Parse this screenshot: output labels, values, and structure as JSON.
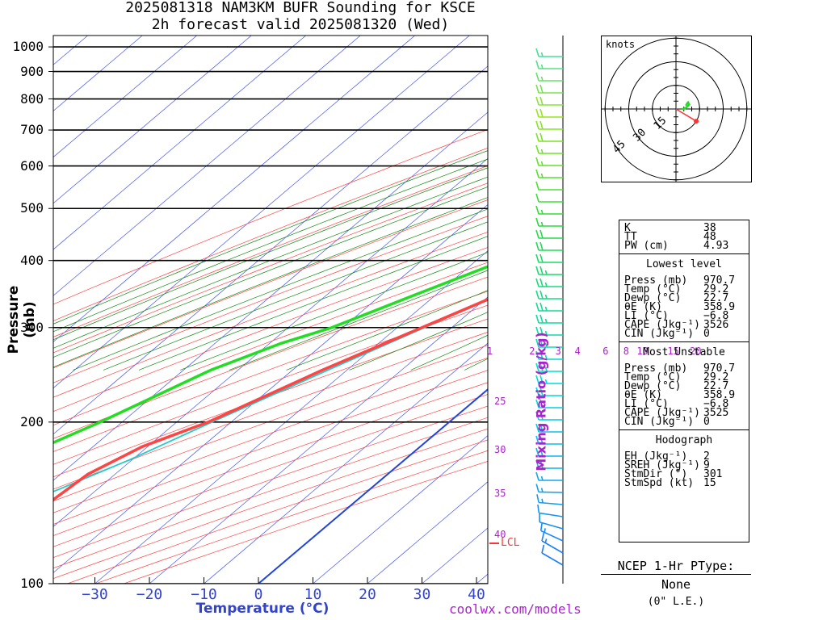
{
  "title": {
    "line1": "2025081318 NAM3KM BUFR Sounding for KSCE",
    "line2": "2h forecast valid 2025081320 (Wed)"
  },
  "axes": {
    "ylabel": "Pressure (mb)",
    "xlabel": "Temperature (°C)",
    "pressure_ticks": [
      "100",
      "200",
      "300",
      "400",
      "500",
      "600",
      "700",
      "800",
      "900",
      "1000"
    ],
    "temp_ticks": [
      "−30",
      "−20",
      "−10",
      "0",
      "10",
      "20",
      "30",
      "40"
    ],
    "mixing_ratio_label": "Mixing Ratio (g/kg)",
    "mixing_ratio_ticks_top": [
      "1",
      "2",
      "3",
      "4",
      "6",
      "8",
      "10",
      "15",
      "20"
    ],
    "mixing_ratio_ticks_side": [
      "25",
      "30",
      "35",
      "40"
    ],
    "lcl_label": "LCL"
  },
  "credit": "coolwx.com/models",
  "colors": {
    "temperature": "#ff4444",
    "dewpoint": "#22dd22",
    "parcel": "#22cccc",
    "freezing": "#2244dd",
    "isotherm": "#4455ee",
    "dry_adiabat": "#ff4444",
    "moist_adiabat": "#118811",
    "mixing_ratio": "#aa22cc"
  },
  "chart_data": {
    "type": "line",
    "x_unit": "°C",
    "y_unit": "mb",
    "ylim": [
      100,
      1050
    ],
    "y_scale": "log",
    "xlim_at_1050mb": [
      -40,
      42
    ],
    "series": [
      {
        "name": "Temperature",
        "points": [
          [
            29.2,
            970.7
          ],
          [
            26.8,
            950
          ],
          [
            24.5,
            925
          ],
          [
            22.5,
            900
          ],
          [
            19.6,
            850
          ],
          [
            17.0,
            800
          ],
          [
            14.0,
            750
          ],
          [
            11.0,
            700
          ],
          [
            7.8,
            650
          ],
          [
            5.0,
            600
          ],
          [
            1.6,
            550
          ],
          [
            -2.2,
            500
          ],
          [
            -6.6,
            450
          ],
          [
            -11.5,
            400
          ],
          [
            -17.8,
            350
          ],
          [
            -25.5,
            300
          ],
          [
            -34.5,
            250
          ],
          [
            -44.2,
            200
          ],
          [
            -51.0,
            180
          ],
          [
            -55.0,
            160
          ],
          [
            -56.0,
            140
          ],
          [
            -56.5,
            120
          ],
          [
            -59.0,
            100
          ]
        ]
      },
      {
        "name": "Dewpoint",
        "points": [
          [
            22.7,
            970.7
          ],
          [
            22.4,
            950
          ],
          [
            22.3,
            925
          ],
          [
            22.0,
            900
          ],
          [
            19.0,
            850
          ],
          [
            12.0,
            800
          ],
          [
            8.0,
            750
          ],
          [
            3.0,
            700
          ],
          [
            -1.0,
            650
          ],
          [
            -5.0,
            600
          ],
          [
            -9.5,
            550
          ],
          [
            -14.0,
            500
          ],
          [
            -17.0,
            450
          ],
          [
            -25.0,
            400
          ],
          [
            -33.0,
            350
          ],
          [
            -42.0,
            300
          ],
          [
            -48.0,
            280
          ],
          [
            -55.0,
            250
          ],
          [
            -64.0,
            200
          ],
          [
            -69.0,
            180
          ],
          [
            -76.0,
            160
          ],
          [
            -78.0,
            150
          ],
          [
            -79.0,
            140
          ]
        ]
      },
      {
        "name": "Parcel",
        "points": [
          [
            29.2,
            970.7
          ],
          [
            25.8,
            940
          ],
          [
            24.5,
            925
          ],
          [
            23.5,
            900
          ],
          [
            21.5,
            850
          ],
          [
            19.3,
            800
          ],
          [
            16.8,
            750
          ],
          [
            14.0,
            700
          ],
          [
            11.0,
            650
          ],
          [
            7.6,
            600
          ],
          [
            3.8,
            550
          ],
          [
            -0.5,
            500
          ],
          [
            -5.5,
            450
          ],
          [
            -11.0,
            400
          ],
          [
            -17.5,
            350
          ],
          [
            -25.0,
            300
          ],
          [
            -33.5,
            250
          ],
          [
            -43.5,
            200
          ],
          [
            -50.5,
            170
          ],
          [
            -57.0,
            150
          ],
          [
            -65.0,
            130
          ],
          [
            -72.0,
            115
          ],
          [
            -78.0,
            105
          ]
        ]
      }
    ],
    "winds_kt": [
      {
        "p": 1000,
        "dir": 300,
        "spd": 10
      },
      {
        "p": 950,
        "dir": 300,
        "spd": 12
      },
      {
        "p": 900,
        "dir": 300,
        "spd": 15
      },
      {
        "p": 850,
        "dir": 290,
        "spd": 12
      },
      {
        "p": 800,
        "dir": 280,
        "spd": 10
      },
      {
        "p": 700,
        "dir": 270,
        "spd": 15
      },
      {
        "p": 600,
        "dir": 270,
        "spd": 20
      },
      {
        "p": 500,
        "dir": 270,
        "spd": 20
      },
      {
        "p": 400,
        "dir": 270,
        "spd": 25
      },
      {
        "p": 300,
        "dir": 270,
        "spd": 25
      },
      {
        "p": 250,
        "dir": 270,
        "spd": 20
      },
      {
        "p": 200,
        "dir": 270,
        "spd": 10
      },
      {
        "p": 150,
        "dir": 270,
        "spd": 20
      },
      {
        "p": 100,
        "dir": 270,
        "spd": 15
      }
    ],
    "hodograph": {
      "units": "knots",
      "rings_kt": [
        15,
        30,
        45
      ],
      "uv_kt": [
        [
          9,
          3
        ],
        [
          10,
          5
        ],
        [
          11,
          6
        ],
        [
          12,
          4
        ],
        [
          9,
          1
        ],
        [
          7,
          0
        ],
        [
          5,
          0
        ]
      ],
      "storm_motion": {
        "dir": 301,
        "spd": 15
      }
    }
  },
  "indices": {
    "general": [
      {
        "k": "K",
        "v": "38"
      },
      {
        "k": "TT",
        "v": "48"
      },
      {
        "k": "PW (cm)",
        "v": "4.93"
      }
    ],
    "lowest_title": "Lowest level",
    "lowest": [
      {
        "k": "Press (mb)",
        "v": "970.7"
      },
      {
        "k": "Temp (°C)",
        "v": "29.2"
      },
      {
        "k": "Dewp (°C)",
        "v": "22.7"
      },
      {
        "k": "θE (K)",
        "v": "358.9"
      },
      {
        "k": "LI (°C)",
        "v": "−6.8"
      },
      {
        "k": "CAPE (Jkg⁻¹)",
        "v": "3526"
      },
      {
        "k": "CIN (Jkg⁻¹)",
        "v": "0"
      }
    ],
    "unstable_title": "Most Unstable",
    "unstable": [
      {
        "k": "Press (mb)",
        "v": "970.7"
      },
      {
        "k": "Temp (°C)",
        "v": "29.2"
      },
      {
        "k": "Dewp (°C)",
        "v": "22.7"
      },
      {
        "k": "θE (K)",
        "v": "358.9"
      },
      {
        "k": "LI (°C)",
        "v": "−6.8"
      },
      {
        "k": "CAPE (Jkg⁻¹)",
        "v": "3525"
      },
      {
        "k": "CIN (Jkg⁻¹)",
        "v": "0"
      }
    ],
    "hodo_title": "Hodograph",
    "hodo": [
      {
        "k": "EH (Jkg⁻¹)",
        "v": "2"
      },
      {
        "k": "SREH (Jkg⁻¹)",
        "v": "9"
      },
      {
        "k": "StmDir (°)",
        "v": "301"
      },
      {
        "k": "StmSpd (kt)",
        "v": "15"
      }
    ]
  },
  "ptype": {
    "title": "NCEP 1-Hr PType:",
    "value": "None",
    "sub": "(0\" L.E.)"
  }
}
